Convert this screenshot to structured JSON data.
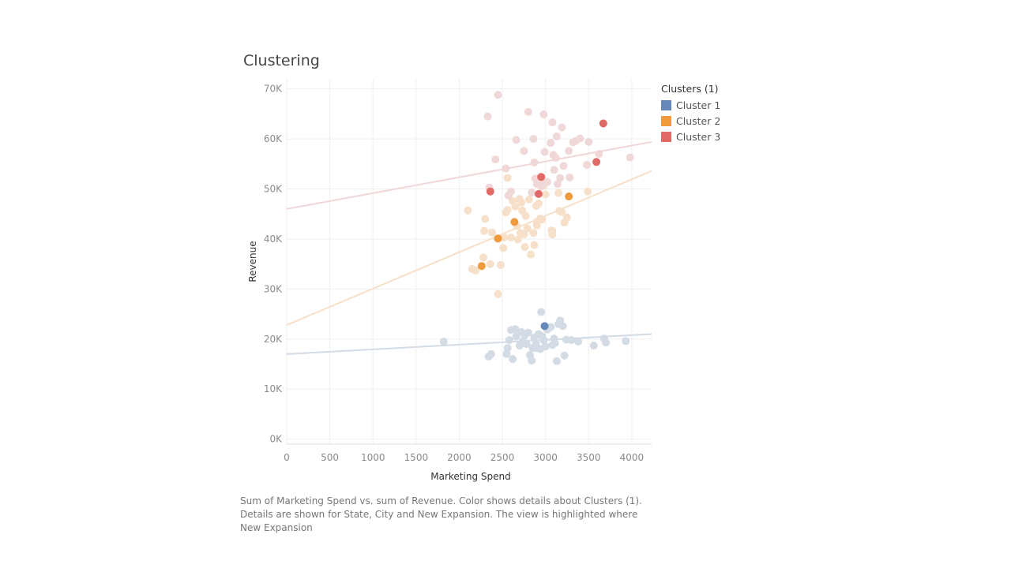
{
  "title": "Clustering",
  "legend": {
    "title": "Clusters (1)",
    "items": [
      {
        "label": "Cluster 1",
        "color": "#6688b8"
      },
      {
        "label": "Cluster 2",
        "color": "#f09a3e"
      },
      {
        "label": "Cluster 3",
        "color": "#e06a66"
      }
    ]
  },
  "caption": "Sum of Marketing Spend vs. sum of Revenue.  Color shows details about Clusters (1).  Details are shown for State, City and New Expansion. The view is highlighted where New Expansion",
  "chart_data": {
    "type": "scatter",
    "xlabel": "Marketing Spend",
    "ylabel": "Revenue",
    "xlim": [
      0,
      4230
    ],
    "ylim": [
      -1000,
      72000
    ],
    "x_ticks": [
      0,
      500,
      1000,
      1500,
      2000,
      2500,
      3000,
      3500,
      4000
    ],
    "x_tick_labels": [
      "0",
      "500",
      "1000",
      "1500",
      "2000",
      "2500",
      "3000",
      "3500",
      "4000"
    ],
    "y_ticks": [
      0,
      10000,
      20000,
      30000,
      40000,
      50000,
      60000,
      70000
    ],
    "y_tick_labels": [
      "0K",
      "10K",
      "20K",
      "30K",
      "40K",
      "50K",
      "60K",
      "70K"
    ],
    "grid": true,
    "legend_position": "right",
    "series": [
      {
        "name": "Cluster 1",
        "color": "#6688b8",
        "faded_color": "#d3dbe5",
        "trend": [
          [
            0,
            17000
          ],
          [
            4230,
            21000
          ]
        ],
        "points": [
          [
            1820,
            19500
          ],
          [
            2340,
            16500
          ],
          [
            2370,
            17000
          ],
          [
            2550,
            17000
          ],
          [
            2560,
            18200
          ],
          [
            2580,
            19800
          ],
          [
            2600,
            21800
          ],
          [
            2620,
            16000
          ],
          [
            2650,
            22000
          ],
          [
            2660,
            20500
          ],
          [
            2700,
            18700
          ],
          [
            2720,
            21400
          ],
          [
            2740,
            19600
          ],
          [
            2760,
            20800
          ],
          [
            2780,
            19000
          ],
          [
            2800,
            21300
          ],
          [
            2820,
            16800
          ],
          [
            2840,
            15700
          ],
          [
            2850,
            18200
          ],
          [
            2870,
            20300
          ],
          [
            2890,
            19100
          ],
          [
            2900,
            18200
          ],
          [
            2920,
            21000
          ],
          [
            2940,
            18000
          ],
          [
            2960,
            20600
          ],
          [
            2980,
            19800
          ],
          [
            3000,
            18500
          ],
          [
            3020,
            21900
          ],
          [
            3060,
            22400
          ],
          [
            3080,
            18800
          ],
          [
            3100,
            20100
          ],
          [
            3110,
            19200
          ],
          [
            3130,
            15600
          ],
          [
            3150,
            23000
          ],
          [
            3170,
            23700
          ],
          [
            3200,
            22600
          ],
          [
            3220,
            16700
          ],
          [
            3240,
            19900
          ],
          [
            3300,
            19800
          ],
          [
            3380,
            19500
          ],
          [
            3560,
            18700
          ],
          [
            3700,
            19300
          ],
          [
            3680,
            20100
          ],
          [
            3930,
            19600
          ],
          [
            2950,
            25400
          ]
        ],
        "highlighted": [
          [
            2990,
            22600
          ]
        ]
      },
      {
        "name": "Cluster 2",
        "color": "#f09a3e",
        "faded_color": "#f6e0c9",
        "trend": [
          [
            0,
            22800
          ],
          [
            4230,
            53600
          ]
        ],
        "points": [
          [
            2100,
            45700
          ],
          [
            2190,
            33700
          ],
          [
            2280,
            36300
          ],
          [
            2290,
            41600
          ],
          [
            2300,
            44000
          ],
          [
            2360,
            35000
          ],
          [
            2380,
            41300
          ],
          [
            2440,
            40100
          ],
          [
            2450,
            29000
          ],
          [
            2480,
            34800
          ],
          [
            2510,
            38200
          ],
          [
            2520,
            40300
          ],
          [
            2540,
            45300
          ],
          [
            2560,
            45800
          ],
          [
            2560,
            52200
          ],
          [
            2600,
            40300
          ],
          [
            2620,
            47600
          ],
          [
            2650,
            46500
          ],
          [
            2670,
            42600
          ],
          [
            2680,
            39900
          ],
          [
            2700,
            48000
          ],
          [
            2710,
            41200
          ],
          [
            2720,
            47300
          ],
          [
            2730,
            45700
          ],
          [
            2750,
            40900
          ],
          [
            2760,
            38400
          ],
          [
            2770,
            44600
          ],
          [
            2790,
            42100
          ],
          [
            2810,
            47900
          ],
          [
            2830,
            36900
          ],
          [
            2860,
            41200
          ],
          [
            2870,
            38800
          ],
          [
            2890,
            46600
          ],
          [
            2900,
            42700
          ],
          [
            2920,
            47100
          ],
          [
            2940,
            44100
          ],
          [
            2960,
            43900
          ],
          [
            2980,
            50700
          ],
          [
            3000,
            48900
          ],
          [
            3070,
            41700
          ],
          [
            3080,
            40900
          ],
          [
            3080,
            41600
          ],
          [
            3150,
            49200
          ],
          [
            3160,
            45600
          ],
          [
            3190,
            45400
          ],
          [
            3220,
            43300
          ],
          [
            3250,
            44300
          ],
          [
            3490,
            49500
          ],
          [
            2150,
            34000
          ],
          [
            2900,
            43400
          ]
        ],
        "highlighted": [
          [
            2260,
            34600
          ],
          [
            2450,
            40100
          ],
          [
            2640,
            43400
          ],
          [
            3270,
            48500
          ]
        ]
      },
      {
        "name": "Cluster 3",
        "color": "#e06a66",
        "faded_color": "#f0d7d8",
        "trend": [
          [
            0,
            46000
          ],
          [
            4230,
            59400
          ]
        ],
        "points": [
          [
            2330,
            64500
          ],
          [
            2450,
            68800
          ],
          [
            2420,
            55900
          ],
          [
            2540,
            54100
          ],
          [
            2660,
            59800
          ],
          [
            2750,
            57600
          ],
          [
            2800,
            65400
          ],
          [
            2860,
            60000
          ],
          [
            2870,
            55300
          ],
          [
            2880,
            52100
          ],
          [
            2900,
            51000
          ],
          [
            2950,
            50500
          ],
          [
            2960,
            51900
          ],
          [
            2980,
            64900
          ],
          [
            2990,
            57400
          ],
          [
            3020,
            51400
          ],
          [
            3060,
            59200
          ],
          [
            3080,
            63300
          ],
          [
            3090,
            56800
          ],
          [
            3100,
            53800
          ],
          [
            3120,
            56200
          ],
          [
            3130,
            60500
          ],
          [
            3140,
            51000
          ],
          [
            3170,
            52200
          ],
          [
            3190,
            62300
          ],
          [
            3210,
            54600
          ],
          [
            3270,
            57600
          ],
          [
            3280,
            52300
          ],
          [
            3320,
            59300
          ],
          [
            3350,
            59600
          ],
          [
            3400,
            60100
          ],
          [
            3480,
            54800
          ],
          [
            3500,
            59400
          ],
          [
            3620,
            57000
          ],
          [
            3980,
            56300
          ],
          [
            2350,
            50300
          ],
          [
            2600,
            49500
          ],
          [
            2840,
            49300
          ],
          [
            2570,
            48700
          ]
        ],
        "highlighted": [
          [
            2360,
            49500
          ],
          [
            2920,
            49000
          ],
          [
            2950,
            52400
          ],
          [
            3590,
            55400
          ],
          [
            3670,
            63100
          ]
        ]
      }
    ]
  }
}
